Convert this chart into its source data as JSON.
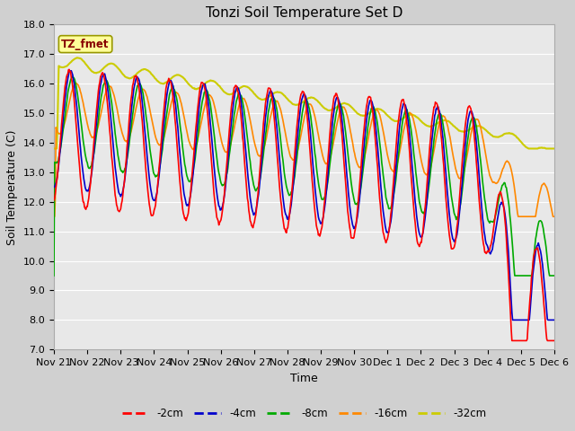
{
  "title": "Tonzi Soil Temperature Set D",
  "xlabel": "Time",
  "ylabel": "Soil Temperature (C)",
  "ylim": [
    7.0,
    18.0
  ],
  "yticks": [
    7.0,
    8.0,
    9.0,
    10.0,
    11.0,
    12.0,
    13.0,
    14.0,
    15.0,
    16.0,
    17.0,
    18.0
  ],
  "xtick_labels": [
    "Nov 21",
    "Nov 22",
    "Nov 23",
    "Nov 24",
    "Nov 25",
    "Nov 26",
    "Nov 27",
    "Nov 28",
    "Nov 29",
    "Nov 30",
    "Dec 1",
    "Dec 2",
    "Dec 3",
    "Dec 4",
    "Dec 5",
    "Dec 6"
  ],
  "annotation_box": "TZ_fmet",
  "colors": {
    "-2cm": "#ff0000",
    "-4cm": "#0000cc",
    "-8cm": "#00aa00",
    "-16cm": "#ff8800",
    "-32cm": "#cccc00"
  },
  "legend_labels": [
    "-2cm",
    "-4cm",
    "-8cm",
    "-16cm",
    "-32cm"
  ],
  "bg_color": "#e8e8e8",
  "title_fontsize": 11,
  "axis_label_fontsize": 9,
  "tick_fontsize": 8
}
